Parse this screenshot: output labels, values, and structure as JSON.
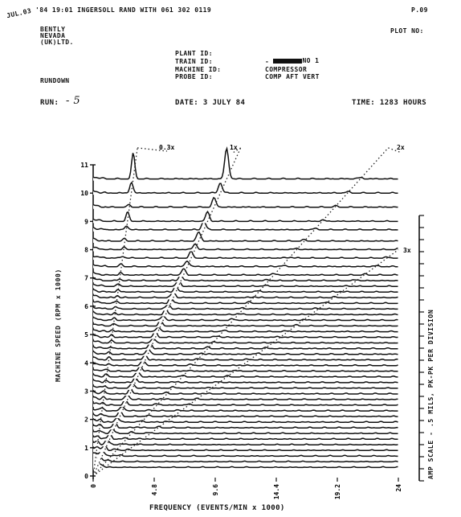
{
  "fax_header": {
    "stamp": "JUL.03",
    "line": "'84 19:01 INGERSOLL RAND WITH 061 302 0119",
    "page": "P.09"
  },
  "company": [
    "BENTLY",
    "NEVADA",
    "(UK)LTD."
  ],
  "plot_no_label": "PLOT NO:",
  "plant": {
    "plant_label": "PLANT ID:",
    "plant_value": "NO 1",
    "train_label": "TRAIN ID:",
    "train_value": "-",
    "machine_label": "MACHINE ID:",
    "machine_value": "COMPRESSOR",
    "probe_label": "PROBE ID:",
    "probe_value": "COMP AFT VERT"
  },
  "mode": "RUNDOWN",
  "run": {
    "label": "RUN:",
    "value": "- 5"
  },
  "date": "DATE: 3 JULY 84",
  "time": "TIME: 1283 HOURS",
  "chart_data": {
    "type": "line",
    "title": "",
    "xlabel": "FREQUENCY (EVENTS/MIN x 1000)",
    "ylabel": "MACHINE SPEED (RPM x 1000)",
    "right_label": "AMP SCALE - .5 MILS, PK-PK PER DIVISION",
    "xlim": [
      0,
      24
    ],
    "ylim": [
      0,
      11
    ],
    "x_ticks": [
      "0",
      "4.8",
      "9.6",
      "14.4",
      "19.2",
      "24"
    ],
    "y_ticks": [
      "0",
      "1",
      "2",
      "3",
      "4",
      "5",
      "6",
      "7",
      "8",
      "9",
      "10",
      "11"
    ],
    "order_lines": [
      {
        "label": "0.3x",
        "order": 0.3
      },
      {
        "label": "1x",
        "order": 1
      },
      {
        "label": "2x",
        "order": 2
      },
      {
        "label": "3x",
        "order": 3
      }
    ],
    "grid": false,
    "spectra_speeds_rpm_x1000": [
      0.3,
      0.5,
      0.7,
      0.9,
      1.1,
      1.3,
      1.5,
      1.7,
      1.9,
      2.1,
      2.3,
      2.5,
      2.7,
      2.9,
      3.1,
      3.3,
      3.5,
      3.7,
      3.9,
      4.1,
      4.3,
      4.5,
      4.7,
      4.9,
      5.1,
      5.3,
      5.5,
      5.7,
      5.9,
      6.1,
      6.3,
      6.5,
      6.7,
      6.9,
      7.1,
      7.4,
      7.7,
      8.0,
      8.3,
      8.7,
      9.0,
      9.5,
      10.0
    ],
    "peaks": [
      {
        "speed": 10.5,
        "order": 1,
        "amplitude_div": 2.2
      },
      {
        "speed": 10.5,
        "order": 0.3,
        "amplitude_div": 2.4
      },
      {
        "speed": 10.0,
        "order": 0.3,
        "amplitude_div": 0.9
      },
      {
        "speed": 9.0,
        "order": 0.3,
        "amplitude_div": 0.7
      }
    ]
  }
}
